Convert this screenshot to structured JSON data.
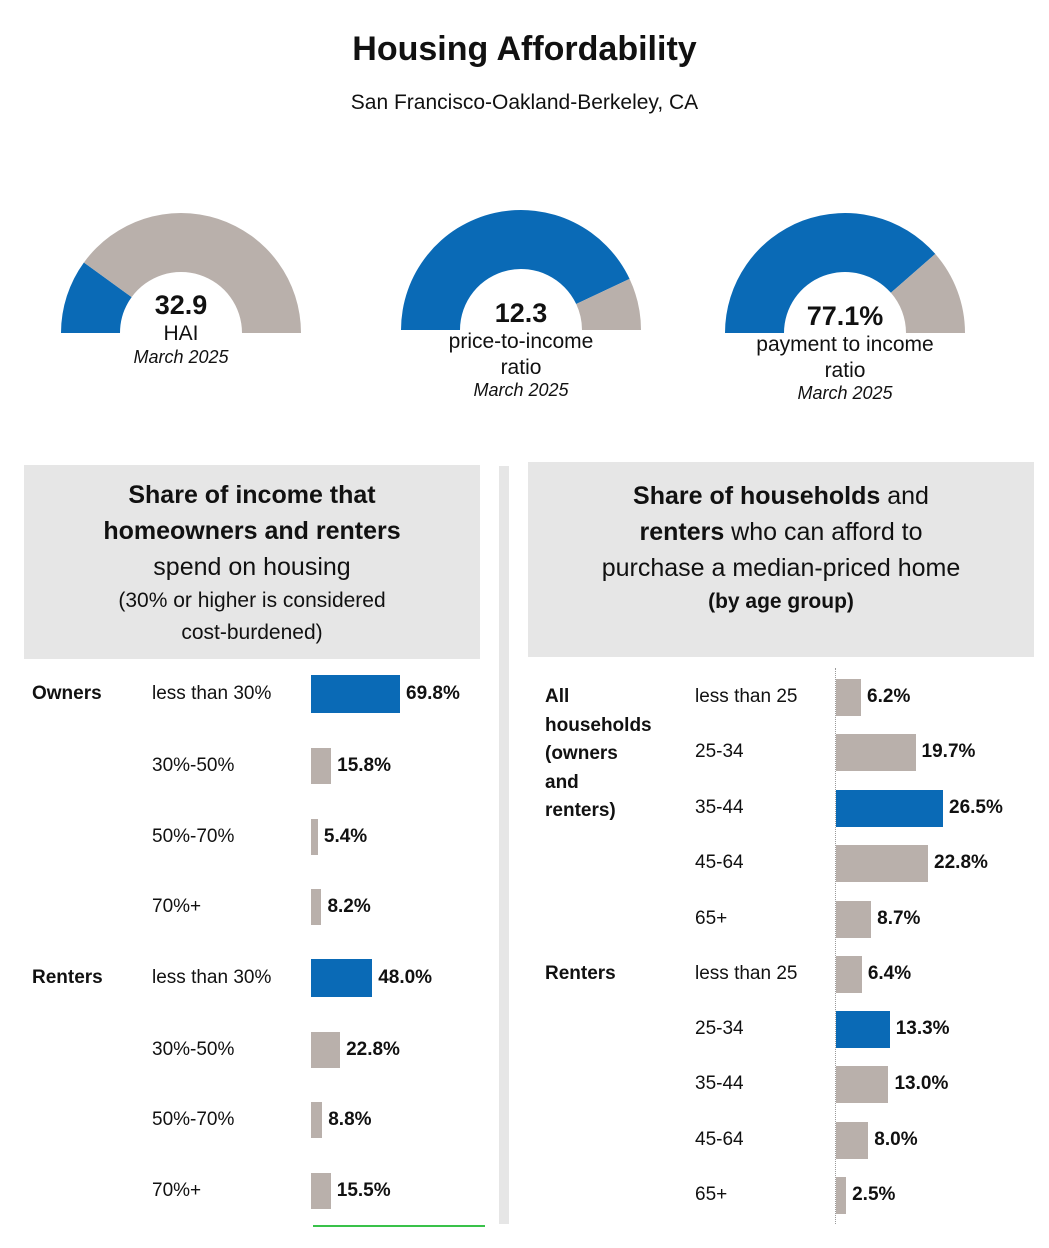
{
  "header": {
    "title": "Housing Affordability",
    "subtitle": "San Francisco-Oakland-Berkeley, CA"
  },
  "colors": {
    "blue": "#0a6ab6",
    "gray": "#b9b0ab",
    "panel_bg": "#e6e6e6"
  },
  "gauges": [
    {
      "value": "32.9",
      "label_lines": [
        "HAI"
      ],
      "date": "March 2025",
      "blue_fraction": 0.2
    },
    {
      "value": "12.3",
      "label_lines": [
        "price-to-income",
        "ratio"
      ],
      "date": "March 2025",
      "blue_fraction": 0.86
    },
    {
      "value": "77.1%",
      "label_lines": [
        "payment to income",
        "ratio"
      ],
      "date": "March 2025",
      "blue_fraction": 0.771
    }
  ],
  "left_panel": {
    "heading": {
      "line1": "Share of income that",
      "line2": "homeowners and renters",
      "line3": "spend on housing",
      "line4": "(30% or higher is considered",
      "line5": "cost-burdened)"
    }
  },
  "right_panel": {
    "heading": {
      "l1_bold": "Share of households",
      "l1_rest": " and",
      "l2_bold": "renters",
      "l2_rest": " who can afford to",
      "line3": "purchase a median-priced home",
      "line4": "(by age group)"
    }
  },
  "chart_data": [
    {
      "type": "bar",
      "orientation": "horizontal",
      "groups": [
        {
          "name": "Owners",
          "categories": [
            "less than 30%",
            "30%-50%",
            "50%-70%",
            "70%+"
          ],
          "values": [
            69.8,
            15.8,
            5.4,
            8.2
          ],
          "labels": [
            "69.8%",
            "15.8%",
            "5.4%",
            "8.2%"
          ],
          "highlight": [
            true,
            false,
            false,
            false
          ]
        },
        {
          "name": "Renters",
          "categories": [
            "less than 30%",
            "30%-50%",
            "50%-70%",
            "70%+"
          ],
          "values": [
            48.0,
            22.8,
            8.8,
            15.5
          ],
          "labels": [
            "48.0%",
            "22.8%",
            "8.8%",
            "15.5%"
          ],
          "highlight": [
            true,
            false,
            false,
            false
          ]
        }
      ]
    },
    {
      "type": "bar",
      "orientation": "horizontal",
      "groups": [
        {
          "name": "All households (owners and renters)",
          "name_lines": [
            "All",
            "households",
            "(owners",
            "and",
            "renters)"
          ],
          "categories": [
            "less than 25",
            "25-34",
            "35-44",
            "45-64",
            "65+"
          ],
          "values": [
            6.2,
            19.7,
            26.5,
            22.8,
            8.7
          ],
          "labels": [
            "6.2%",
            "19.7%",
            "26.5%",
            "22.8%",
            "8.7%"
          ],
          "highlight": [
            false,
            false,
            true,
            false,
            false
          ]
        },
        {
          "name": "Renters",
          "name_lines": [
            "Renters"
          ],
          "categories": [
            "less than 25",
            "25-34",
            "35-44",
            "45-64",
            "65+"
          ],
          "values": [
            6.4,
            13.3,
            13.0,
            8.0,
            2.5
          ],
          "labels": [
            "6.4%",
            "13.3%",
            "13.0%",
            "8.0%",
            "2.5%"
          ],
          "highlight": [
            false,
            true,
            false,
            false,
            false
          ]
        }
      ]
    }
  ]
}
